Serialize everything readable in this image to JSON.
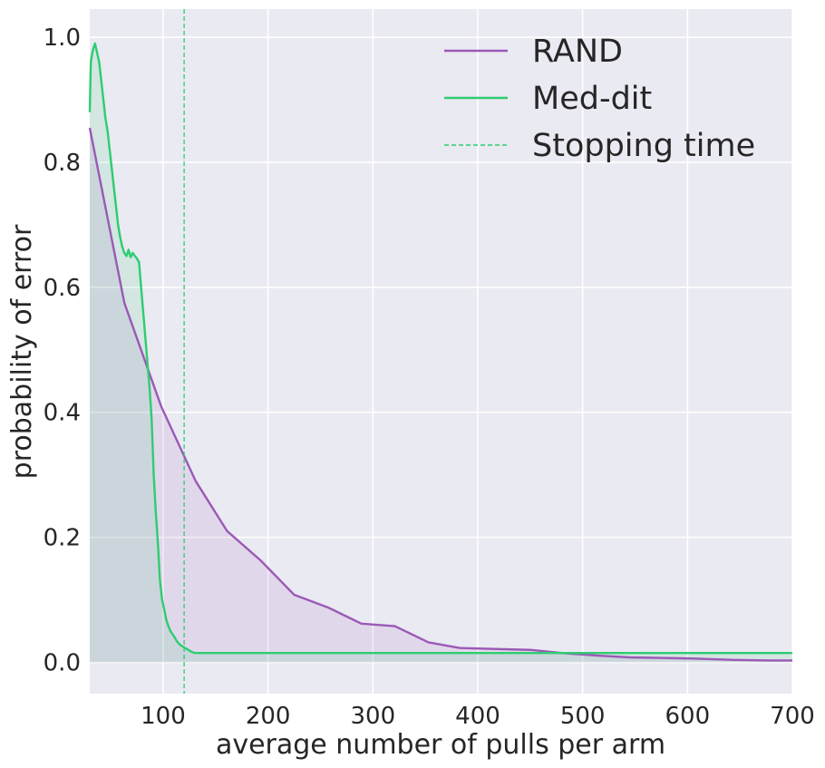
{
  "chart_data": {
    "type": "line",
    "title": "",
    "xlabel": "average number of pulls per arm",
    "ylabel": "probability of error",
    "xlim": [
      30,
      700
    ],
    "ylim": [
      -0.05,
      1.045
    ],
    "xticks": [
      100,
      200,
      300,
      400,
      500,
      600,
      700
    ],
    "xtick_labels": [
      "100",
      "200",
      "300",
      "400",
      "500",
      "600",
      "700"
    ],
    "yticks": [
      0.0,
      0.2,
      0.4,
      0.6,
      0.8,
      1.0
    ],
    "ytick_labels": [
      "0.0",
      "0.2",
      "0.4",
      "0.6",
      "0.8",
      "1.0"
    ],
    "grid": true,
    "legend_position": "top-right",
    "background": "#eaeaf2",
    "series": [
      {
        "name": "RAND",
        "color": "#9b59b6",
        "fill": true,
        "x": [
          30,
          63,
          98,
          131,
          161,
          193,
          225,
          257,
          289,
          321,
          353,
          383,
          450,
          480,
          513,
          545,
          580,
          610,
          645,
          680,
          700
        ],
        "y": [
          0.855,
          0.575,
          0.41,
          0.29,
          0.21,
          0.163,
          0.108,
          0.088,
          0.062,
          0.058,
          0.032,
          0.023,
          0.02,
          0.015,
          0.011,
          0.008,
          0.007,
          0.006,
          0.004,
          0.003,
          0.003
        ]
      },
      {
        "name": "Med-dit",
        "color": "#2ecc71",
        "fill": true,
        "x": [
          30,
          31,
          33,
          35,
          37,
          39,
          41,
          43,
          45,
          47,
          49,
          51,
          53,
          55,
          57,
          59,
          61,
          63,
          65,
          67,
          69,
          71,
          73,
          75,
          77,
          79,
          81,
          83,
          85,
          87,
          89,
          91,
          93,
          95,
          97,
          99,
          101,
          103,
          105,
          107,
          109,
          111,
          113,
          115,
          117,
          119,
          121,
          123,
          125,
          127,
          130,
          200,
          300,
          400,
          500,
          600,
          700
        ],
        "y": [
          0.88,
          0.96,
          0.98,
          0.99,
          0.975,
          0.96,
          0.93,
          0.9,
          0.87,
          0.85,
          0.82,
          0.79,
          0.76,
          0.73,
          0.7,
          0.68,
          0.665,
          0.655,
          0.65,
          0.66,
          0.648,
          0.655,
          0.65,
          0.646,
          0.64,
          0.6,
          0.56,
          0.52,
          0.48,
          0.44,
          0.39,
          0.3,
          0.24,
          0.19,
          0.13,
          0.1,
          0.085,
          0.068,
          0.058,
          0.05,
          0.045,
          0.04,
          0.034,
          0.03,
          0.027,
          0.025,
          0.023,
          0.021,
          0.019,
          0.017,
          0.015,
          0.015,
          0.015,
          0.015,
          0.015,
          0.015,
          0.015
        ]
      },
      {
        "name": "Stopping time",
        "color": "#2ecc71",
        "style": "dashed",
        "vertical_x": 120
      }
    ]
  }
}
